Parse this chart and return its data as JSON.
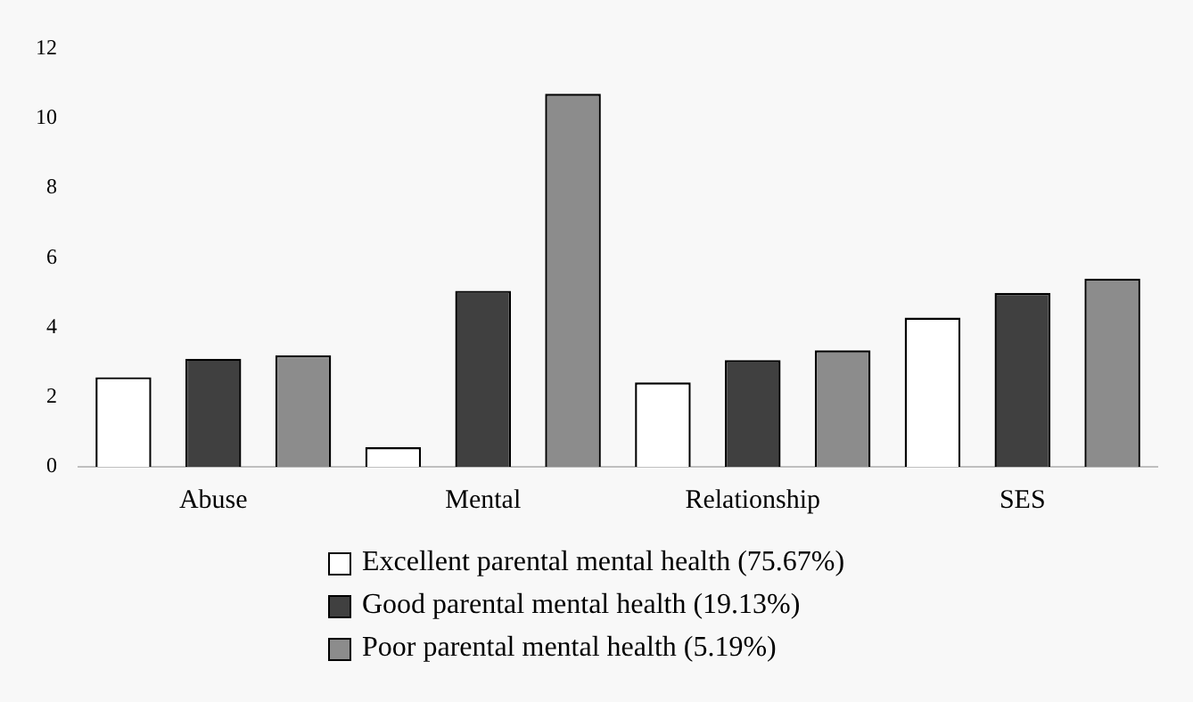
{
  "chart_data": {
    "type": "bar",
    "categories": [
      "Abuse",
      "Mental",
      "Relationship",
      "SES"
    ],
    "series": [
      {
        "name": "Excellent parental mental health (75.67%)",
        "color": "#ffffff",
        "values": [
          2.57,
          0.56,
          2.42,
          4.28
        ]
      },
      {
        "name": "Good parental mental health (19.13%)",
        "color": "#404040",
        "values": [
          3.1,
          5.05,
          3.06,
          4.99
        ]
      },
      {
        "name": "Poor parental mental health (5.19%)",
        "color": "#8c8c8c",
        "values": [
          3.2,
          10.7,
          3.34,
          5.4
        ]
      }
    ],
    "ylim": [
      0,
      12
    ],
    "yticks": [
      0,
      2,
      4,
      6,
      8,
      10,
      12
    ],
    "grid": false,
    "legend": "bottom"
  }
}
